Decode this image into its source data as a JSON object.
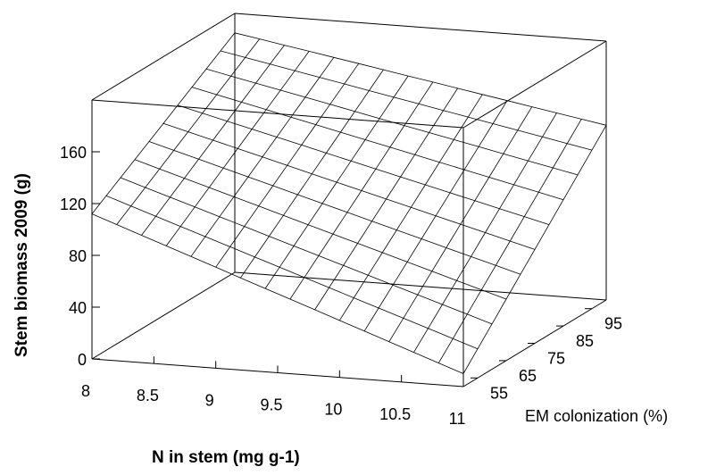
{
  "chart_data": {
    "type": "surface",
    "surface_style": "wireframe plane",
    "xlabel": "N in stem (mg g-1)",
    "ylabel": "EM colonization (%)",
    "zlabel": "Stem biomass 2009  (g)",
    "x_ticks": [
      "8",
      "8.5",
      "9",
      "9.5",
      "10",
      "10.5",
      "11"
    ],
    "y_ticks": [
      "55",
      "65",
      "75",
      "85",
      "95"
    ],
    "z_ticks": [
      "0",
      "40",
      "80",
      "120",
      "160"
    ],
    "xlim": [
      8,
      11
    ],
    "ylim": [
      50,
      100
    ],
    "zlim": [
      0,
      200
    ],
    "surface_corners": [
      {
        "x": 8,
        "y": 50,
        "z": 112
      },
      {
        "x": 11,
        "y": 50,
        "z": 10
      },
      {
        "x": 8,
        "y": 100,
        "z": 185
      },
      {
        "x": 11,
        "y": 100,
        "z": 135
      }
    ],
    "mesh_lines_x": 15,
    "mesh_lines_y": 10,
    "grid": false
  }
}
